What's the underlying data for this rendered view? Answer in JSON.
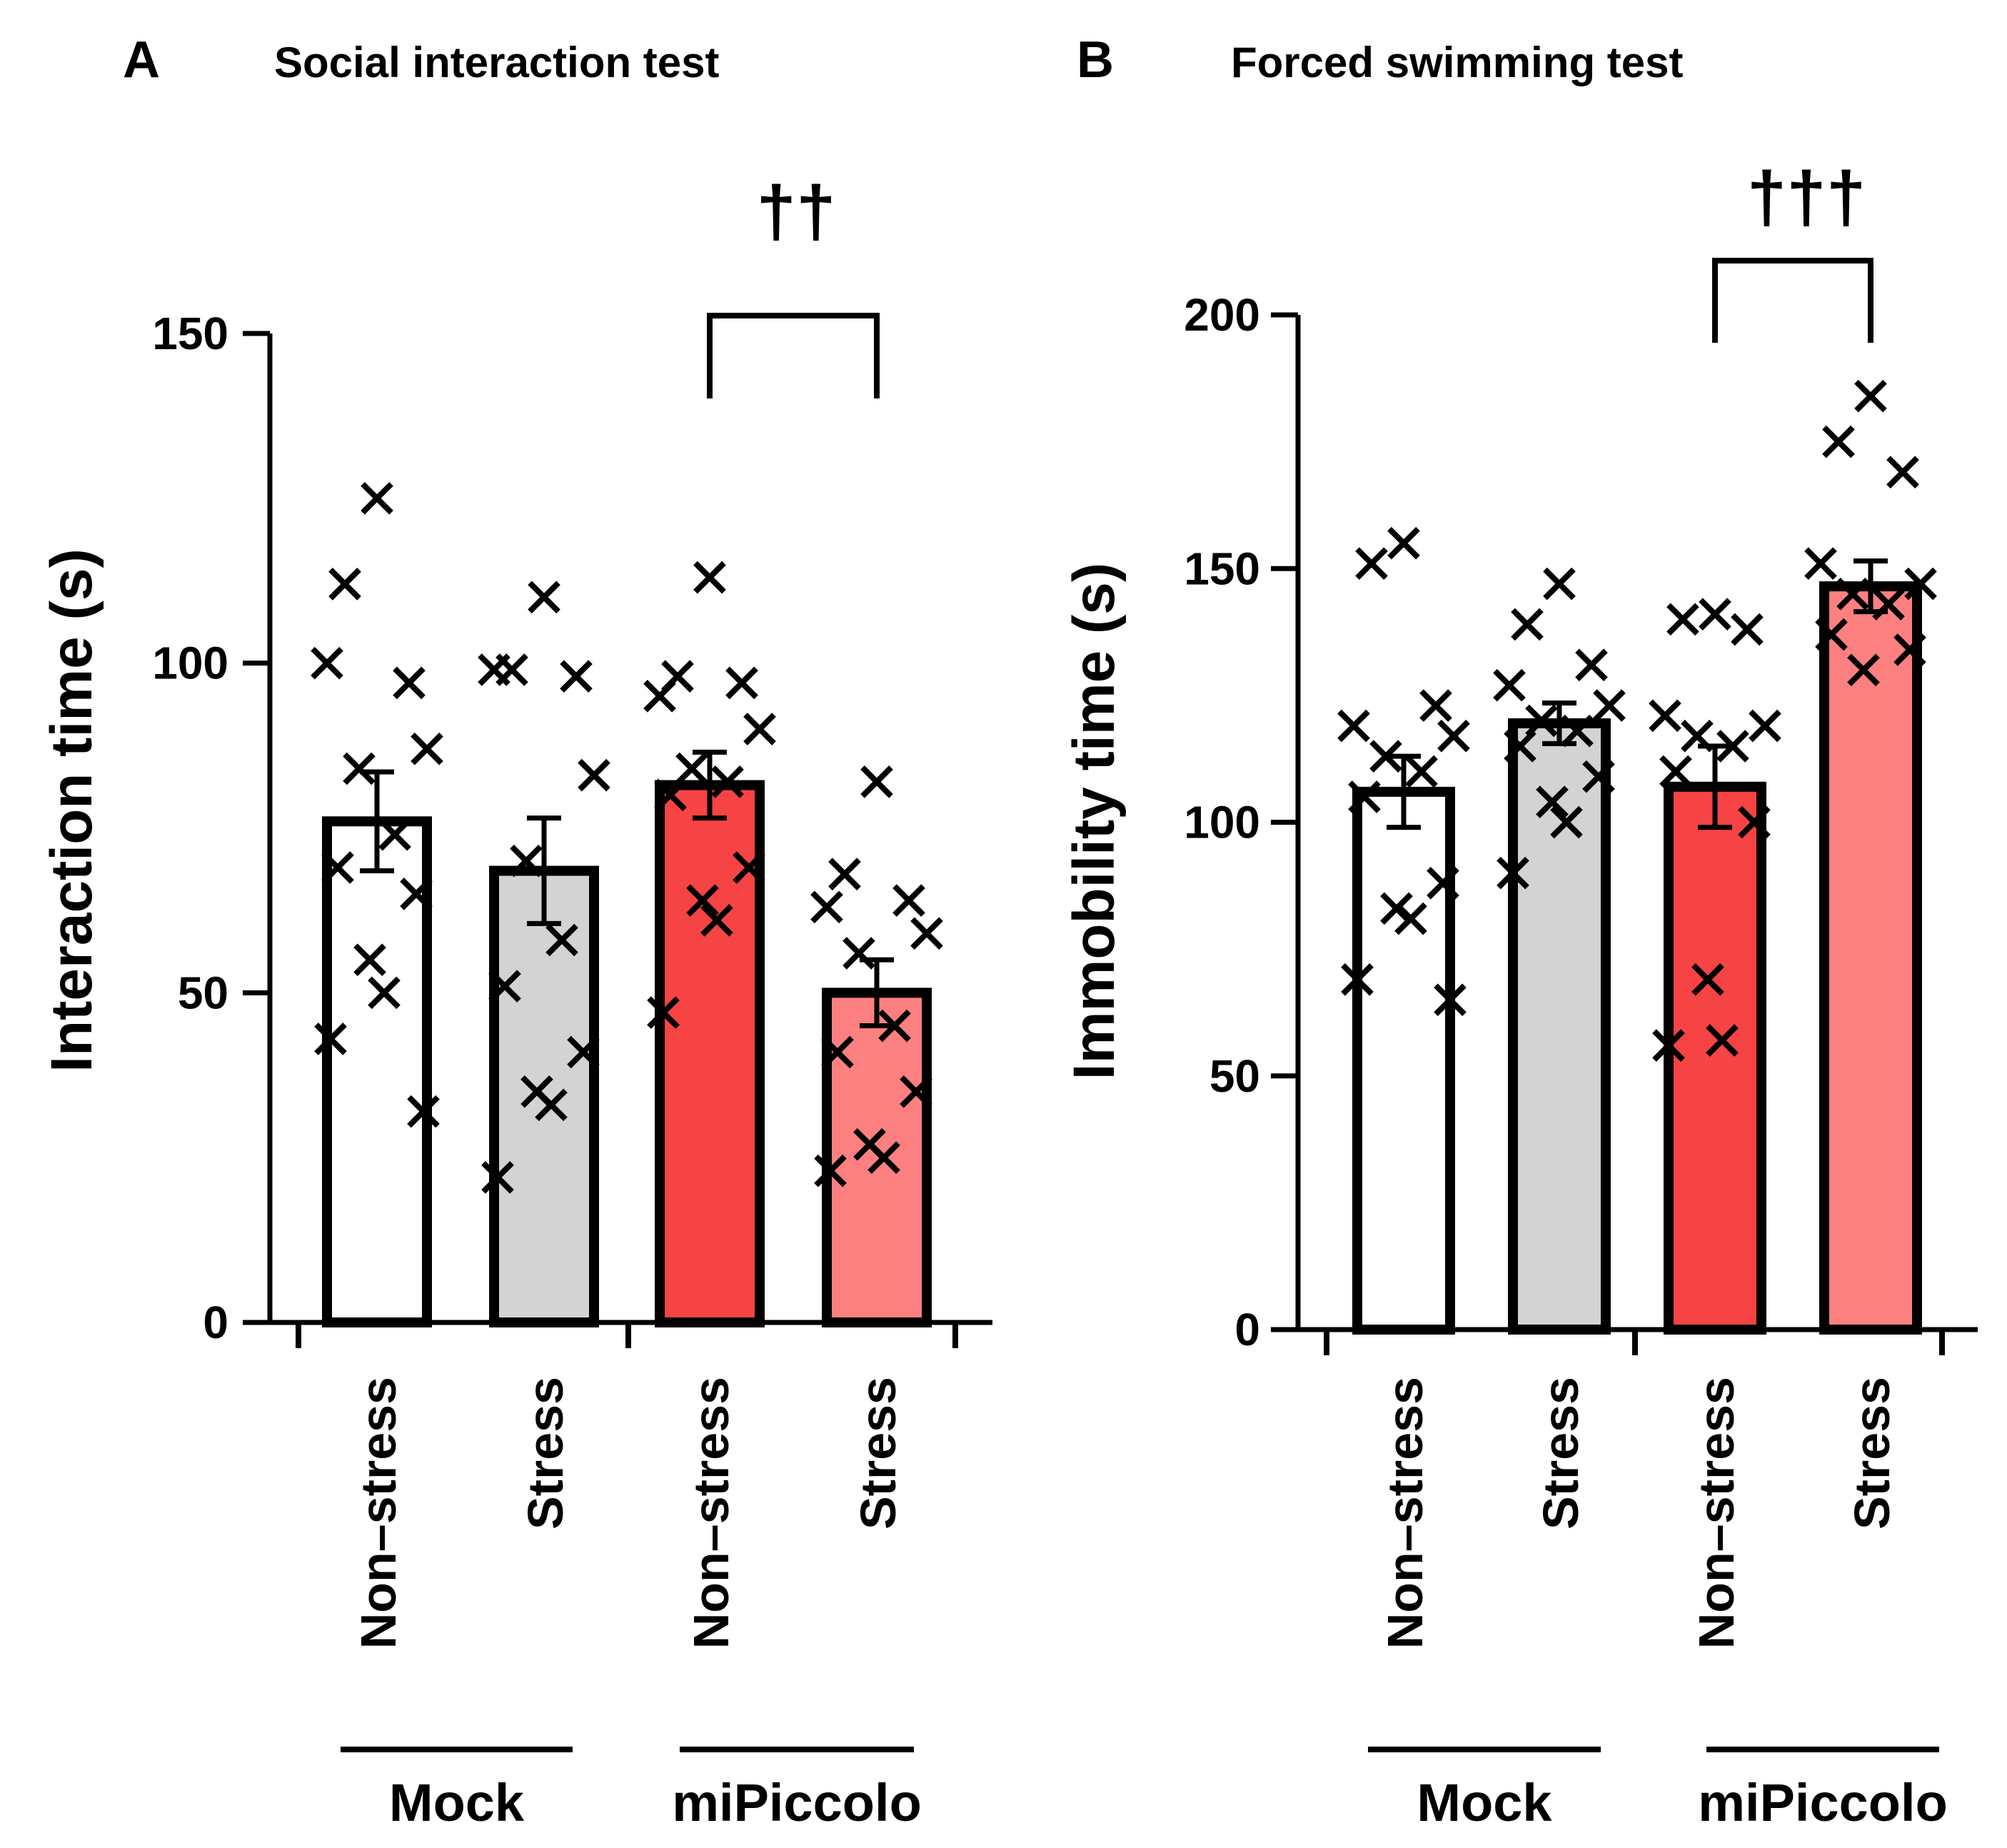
{
  "chart_data": [
    {
      "type": "bar",
      "panel_label": "A",
      "title": "Social interaction test",
      "xlabel": "",
      "ylabel": "Interaction time (s)",
      "ylim": [
        0,
        150
      ],
      "yticks": [
        0,
        50,
        100,
        150
      ],
      "tick_labels": [
        "0",
        "50",
        "100",
        "150"
      ],
      "categories": [
        "Non–stress",
        "Stress",
        "Non–stress",
        "Stress"
      ],
      "groups": [
        {
          "label": "Mock",
          "categories": [
            0,
            1
          ]
        },
        {
          "label": "miPiccolo",
          "categories": [
            2,
            3
          ]
        }
      ],
      "bar_colors": [
        "#ffffff",
        "#d3d3d3",
        "#f64343",
        "#fd8080"
      ],
      "values": [
        76,
        68.5,
        81.5,
        50
      ],
      "sem": [
        7.5,
        8,
        5,
        5
      ],
      "points": [
        [
          125,
          112,
          97,
          100,
          87,
          84,
          74,
          69,
          65,
          55,
          50,
          43,
          32
        ],
        [
          110,
          99,
          98,
          99,
          83,
          70,
          58,
          51,
          41,
          35,
          33,
          22
        ],
        [
          113,
          98,
          97,
          95,
          90,
          84,
          82,
          80,
          69,
          64,
          61,
          47
        ],
        [
          82,
          68,
          64,
          63,
          59,
          56,
          45,
          41,
          35,
          27,
          25,
          23
        ]
      ],
      "significance": [
        {
          "between": [
            2,
            3
          ],
          "label": "††"
        }
      ]
    },
    {
      "type": "bar",
      "panel_label": "B",
      "title": "Forced swimming test",
      "xlabel": "",
      "ylabel": "Immobility time (s)",
      "ylim": [
        0,
        200
      ],
      "yticks": [
        0,
        50,
        100,
        150,
        200
      ],
      "tick_labels": [
        "0",
        "50",
        "100",
        "150",
        "200"
      ],
      "categories": [
        "Non–stress",
        "Stress",
        "Non–stress",
        "Stress"
      ],
      "groups": [
        {
          "label": "Mock",
          "categories": [
            0,
            1
          ]
        },
        {
          "label": "miPiccolo",
          "categories": [
            2,
            3
          ]
        }
      ],
      "bar_colors": [
        "#ffffff",
        "#d3d3d3",
        "#f64343",
        "#fd8080"
      ],
      "values": [
        106,
        119.5,
        107,
        146.5
      ],
      "sem": [
        7,
        4,
        8,
        5
      ],
      "points": [
        [
          155,
          151,
          123,
          119,
          117,
          113,
          110,
          105,
          88,
          83,
          81,
          69,
          65
        ],
        [
          147,
          139,
          131,
          127,
          123,
          120,
          118,
          115,
          109,
          104,
          100,
          90
        ],
        [
          141,
          140,
          138,
          121,
          119,
          117,
          115,
          110,
          100,
          69,
          57,
          56
        ],
        [
          184,
          175,
          169,
          151,
          147,
          145,
          143,
          137,
          134,
          130
        ]
      ],
      "significance": [
        {
          "between": [
            2,
            3
          ],
          "label": "†††"
        }
      ]
    }
  ]
}
